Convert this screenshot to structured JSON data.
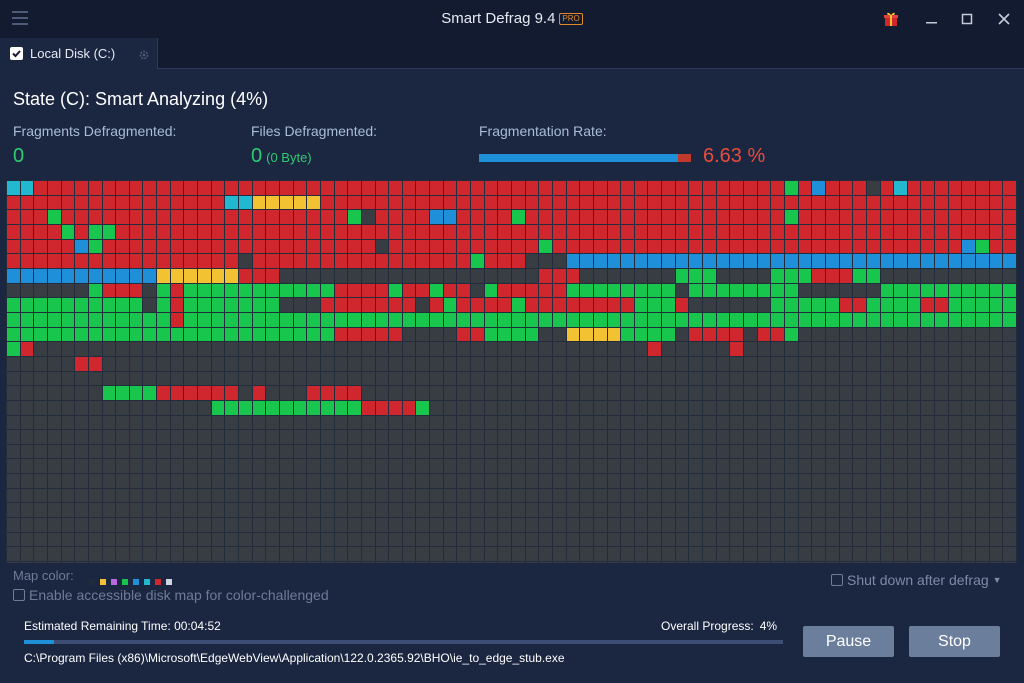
{
  "window": {
    "title": "Smart Defrag 9.4",
    "badge": "PRO"
  },
  "icons": {
    "menu": "hamburger-menu-icon",
    "gift": "gift-icon",
    "minimize": "minimize-icon",
    "maximize": "maximize-icon",
    "close": "close-icon",
    "tab_settings": "gear-icon"
  },
  "tab": {
    "label": "Local Disk (C:)",
    "checked": true
  },
  "status": {
    "state": "State (C): Smart Analyzing (4%)",
    "fragments_label": "Fragments Defragmented:",
    "fragments_value": "0",
    "files_label": "Files Defragmented:",
    "files_value": "0",
    "files_size": "(0 Byte)",
    "frag_rate_label": "Fragmentation Rate:",
    "frag_rate_value": "6.63 %",
    "frag_rate_fill_fraction": 0.94
  },
  "disk_map": {
    "columns": 74,
    "rows": 28,
    "colors": {
      "D": "#383d44",
      "R": "#d0272f",
      "G": "#19c64d",
      "B": "#1f8fd9",
      "Y": "#f3c233",
      "C": "#22b8cf",
      "K": "#1f2a3a"
    },
    "rows_data": [
      "CCRRRRRRRRRRRRRRRRRRRRRRRRRRRRRRRRRRRRRRRRRRRRRRRRRRRRRRRGRBRRRDRCRRRRRRRR",
      "RRRRRRRRRRRRRRRRCCYYYYYRRRRRRRRRRRRRRRRRRRRRRRRRRRRRRRRRRRRRRRRRRRRRRRRRRR",
      "RRRGRRRRRRRRRRRRRRRRRRRRRGDRRRRBBRRRRGRRRRRRRRRRRRRRRRRRRGRRRRRRRRRRRRRRRR",
      "RRRRGRGGRRRRRRRRRRRRRRRRRRRRRRRRRRRRRRRRRRRRRRRRRRRRRRRRRRRRRRRRRRRRRRRRRR",
      "RRRRRBGRRRRRRRRRRRRRRRRRRRRDRRRRRRRRRRRGRRRRRRRRRRRRRRRRRRRRRRRRRRRRRRBGRR",
      "RRRRRRRRRRRRRRRRRDRRRRRRRRRRRRRRRRGRRRDDDBBBBBBBBBBBBBBBBBBBBBBBBBBBBBBBBBB",
      "BBBBBBBBBBBYYYYYYRRRDDDDDDDDDDDDDDDDDDDRRRDDDDDDDGGGDDDDGGGRRRGGDDDDDDDDDDD",
      "DDDDDDGRRRDGRGGGGGGGGGGGRRRRGRRGRRDGRRRRRGGGGGGGGDGGGGGGGGDDDDDDGGGGGGGGGG",
      "GGGGGGGGGGDGRGGGGGGGDDDRRRRRRRDRGRRRRGRRRRRRRRGGGRDDDDDDGGGGGRRGGGGRRGGGGG",
      "GGGGGGGGGGGGRGGGGGGGGGGGGGGGGGGGGGGGGGGGGGGGGGGGGGGGGGGGGGGGGGGGGGGGGGGGGG",
      "GGGGGGGGGGGGGGGGGGGGGGGGRRRRRDDDDRRGGGGDDYYYYGGGGDRRRRDRRGDDDDDDDDDDDDDDDD",
      "GRDDDDDDDDDDDDDDDDDDDDDDDDDDDDDDDDDDDDDDDDDDDDDRDDDDDRDDDDDDDDDDDDDDDDDDDD",
      "DDDDDRRDDDDDDDDDDDDDDDDDDDDDDDDDDDDDDDDDDDDDDDDDDDDDDDDDDDDDDDDDDDDDDDDDDD",
      "DDDDDDDDDDDDDDDDDDDDDDDDDDDDDDDDDDDDDDDDDDDDDDDDDDDDDDDDDDDDDDDDDDDDDDDDDD",
      "DDDDDDDGGGGRRRRRRDRDDDRRRRDDDDDDDDDDDDDDDDDDDDDDDDDDDDDDDDDDDDDDDDDDDDDDDD",
      "DDDDDDDDDDDDDDDGGGGGGGGGGGRRRRGDDDDDDDDDDDDDDDDDDDDDDDDDDDDDDDDDDDDDDDDDDD",
      "DDDDDDDDDDDDDDDDDDDDDDDDDDDDDDDDDDDDDDDDDDDDDDDDDDDDDDDDDDDDDDDDDDDDDDDDDD",
      "DDDDDDDDDDDDDDDDDDDDDDDDDDDDDDDDDDDDDDDDDDDDDDDDDDDDDDDDDDDDDDDDDDDDDDDDDD",
      "DDDDDDDDDDDDDDDDDDDDDDDDDDDDDDDDDDDDDDDDDDDDDDDDDDDDDDDDDDDDDDDDDDDDDDDDDD",
      "DDDDDDDDDDDDDDDDDDDDDDDDDDDDDDDDDDDDDDDDDDDDDDDDDDDDDDDDDDDDDDDDDDDDDDDDDD",
      "DDDDDDDDDDDDDDDDDDDDDDDDDDDDDDDDDDDDDDDDDDDDDDDDDDDDDDDDDDDDDDDDDDDDDDDDDD",
      "DDDDDDDDDDDDDDDDDDDDDDDDDDDDDDDDDDDDDDDDDDDDDDDDDDDDDDDDDDDDDDDDDDDDDDDDDD",
      "DDDDDDDDDDDDDDDDDDDDDDDDDDDDDDDDDDDDDDDDDDDDDDDDDDDDDDDDDDDDDDDDDDDDDDDDDD",
      "DDDDDDDDDDDDDDDDDDDDDDDDDDDDDDDDDDDDDDDDDDDDDDDDDDDDDDDDDDDDDDDDDDDDDDDDDD",
      "DDDDDDDDDDDDDDDDDDDDDDDDDDDDDDDDDDDDDDDDDDDDDDDDDDDDDDDDDDDDDDDDDDDDDDDDDD",
      "DDDDDDDDDDDDDDDDDDDDDDDDDDDDDDDDDDDDDDDDDDDDDDDDDDDDDDDDDDDDDDDDDDDDDDDDDD",
      "DDDDDDDDDDDDDDDDDDDDDDDDDDDDDDDDDDDDDDDDDDDDDDDDDDDDDDDDDDDDDDDDDDDDDDDDDD",
      "DDDDDDDDDDDDDDDDDDDDDDDDDDDDDDDDDDDDDDDDDDDDDDDDDDDDDDDDDDDDDDDDDDDDDDDDDD"
    ]
  },
  "legend": {
    "label": "Map color:",
    "colors": [
      "#1f2a3a",
      "#f3c233",
      "#b86adf",
      "#19c64d",
      "#1f8fd9",
      "#22b8cf",
      "#d0272f",
      "#cfd6e2"
    ]
  },
  "options": {
    "accessible_label": "Enable accessible disk map for color-challenged",
    "shutdown_label": "Shut down after defrag"
  },
  "progress": {
    "remaining_label": "Estimated Remaining Time:",
    "remaining_value": "00:04:52",
    "overall_label": "Overall Progress:",
    "overall_value": "4%",
    "overall_fraction": 0.04,
    "current_file": "C:\\Program Files (x86)\\Microsoft\\EdgeWebView\\Application\\122.0.2365.92\\BHO\\ie_to_edge_stub.exe"
  },
  "buttons": {
    "pause": "Pause",
    "stop": "Stop"
  }
}
